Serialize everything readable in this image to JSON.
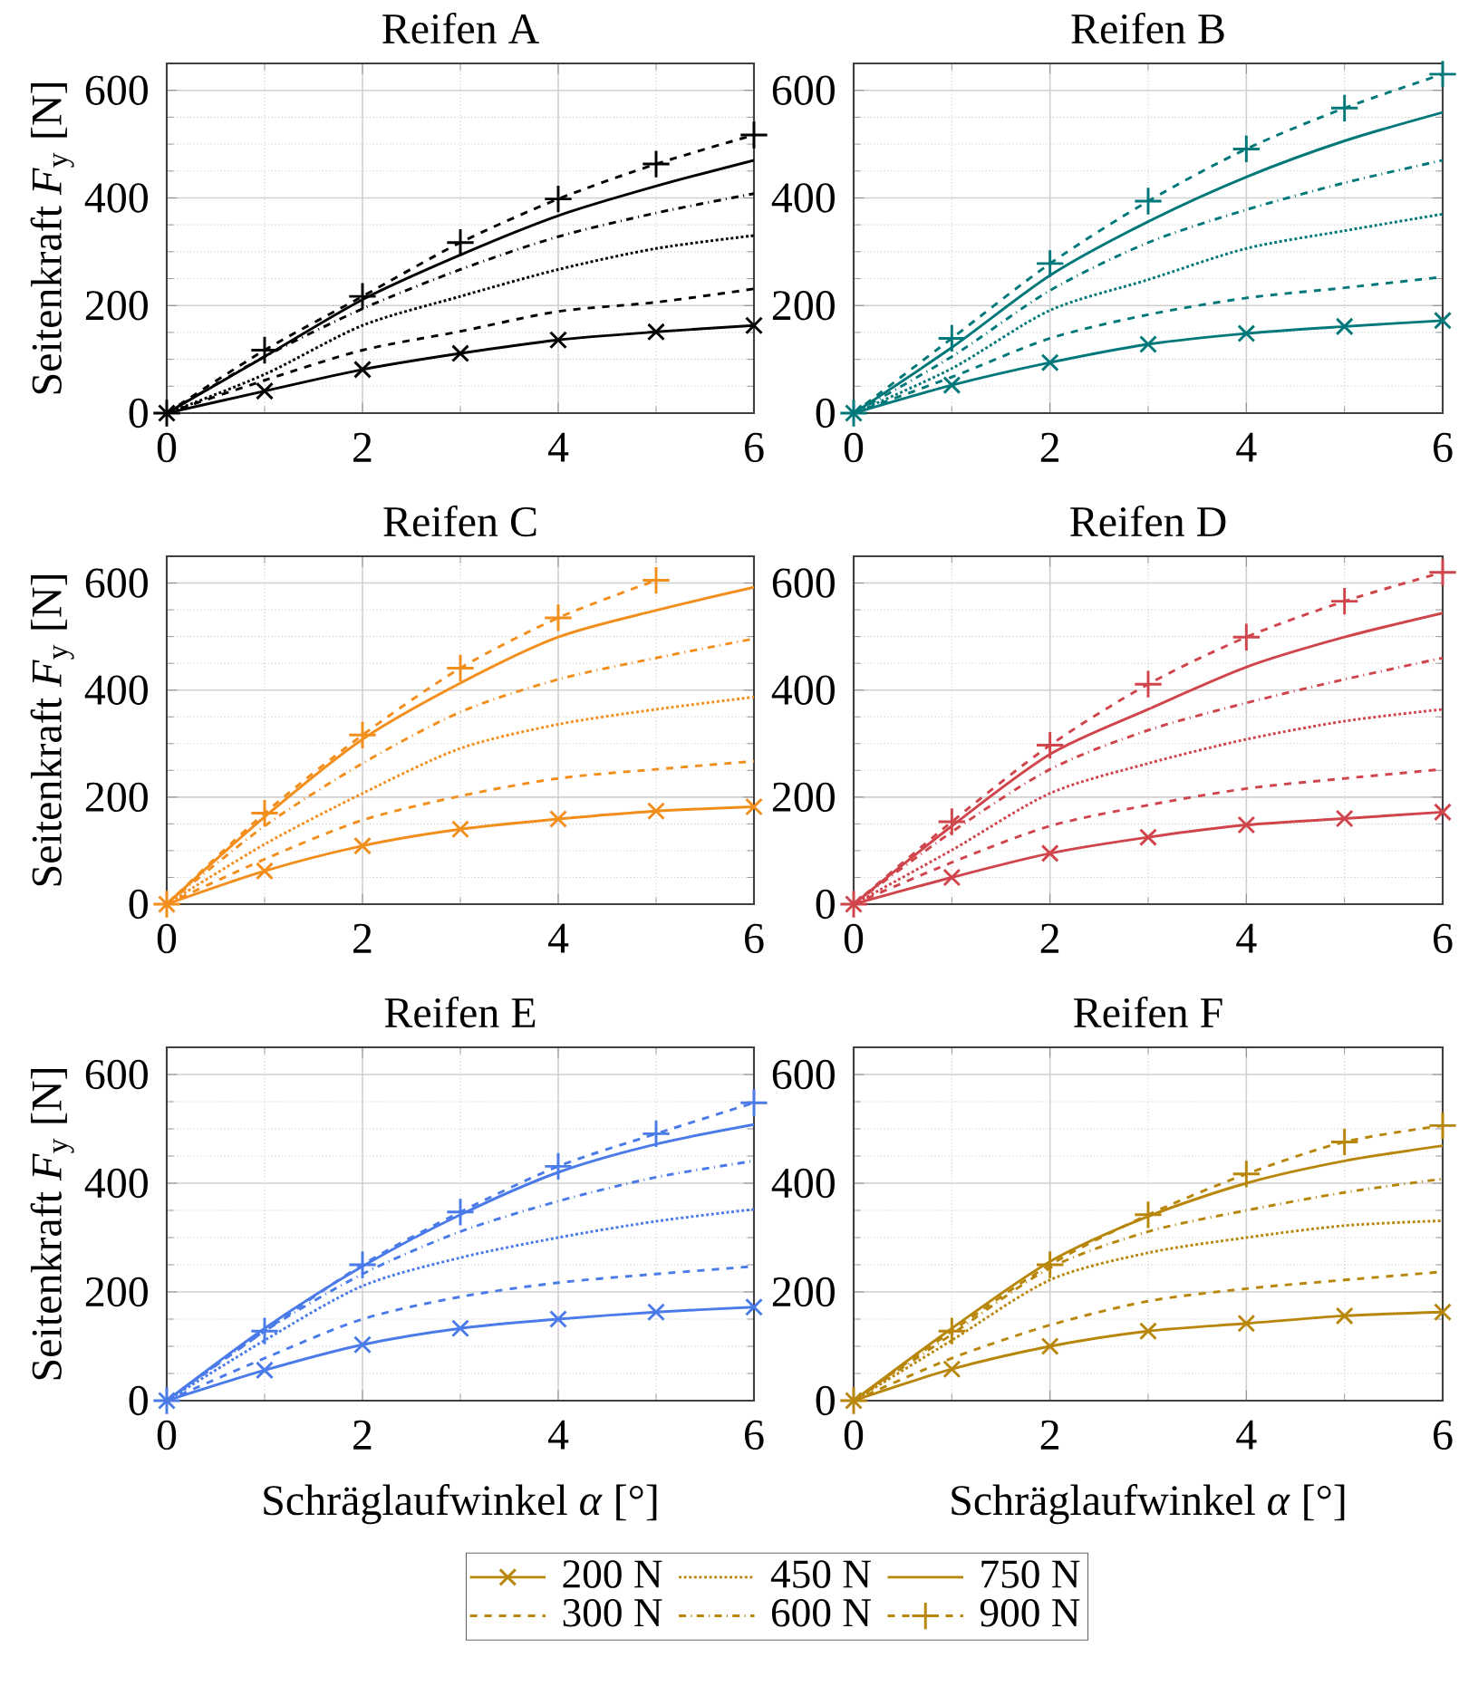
{
  "chart_data": [
    {
      "type": "line",
      "title": "Reifen A",
      "ylabel": "Seitenkraft *F*$_{y}$ [N]",
      "x": [
        0,
        1,
        2,
        3,
        4,
        5,
        6
      ],
      "xlim": [
        0,
        6
      ],
      "ylim": [
        0,
        650
      ],
      "xticks": [
        0,
        2,
        4,
        6
      ],
      "yticks": [
        0,
        200,
        400,
        600
      ],
      "grid": true,
      "series": [
        {
          "color": "#000000",
          "line_style": "solid",
          "marker": "cross",
          "values": [
            0,
            41,
            81,
            111,
            136,
            151,
            163
          ]
        },
        {
          "color": "#000000",
          "line_style": "dashed",
          "marker": "none",
          "values": [
            0,
            61,
            117,
            152,
            189,
            206,
            231
          ]
        },
        {
          "color": "#000000",
          "line_style": "dotted",
          "marker": "none",
          "values": [
            0,
            72,
            163,
            217,
            267,
            306,
            330
          ]
        },
        {
          "color": "#000000",
          "line_style": "dashdot",
          "marker": "none",
          "values": [
            0,
            105,
            194,
            267,
            328,
            372,
            408
          ]
        },
        {
          "color": "#000000",
          "line_style": "solid",
          "marker": "none",
          "values": [
            0,
            105,
            211,
            294,
            367,
            422,
            470
          ]
        },
        {
          "color": "#000000",
          "line_style": "dashed",
          "marker": "plus",
          "values": [
            0,
            117,
            217,
            317,
            398,
            463,
            517
          ]
        }
      ]
    },
    {
      "type": "line",
      "title": "Reifen B",
      "x": [
        0,
        1,
        2,
        3,
        4,
        5,
        6
      ],
      "xlim": [
        0,
        6
      ],
      "ylim": [
        0,
        650
      ],
      "xticks": [
        0,
        2,
        4,
        6
      ],
      "yticks": [
        0,
        200,
        400,
        600
      ],
      "grid": true,
      "series": [
        {
          "color": "#00787a",
          "line_style": "solid",
          "marker": "cross",
          "values": [
            0,
            52,
            94,
            128,
            148,
            161,
            172
          ]
        },
        {
          "color": "#00787a",
          "line_style": "dashed",
          "marker": "none",
          "values": [
            0,
            67,
            139,
            183,
            214,
            233,
            253
          ]
        },
        {
          "color": "#00787a",
          "line_style": "dotted",
          "marker": "none",
          "values": [
            0,
            83,
            191,
            248,
            306,
            339,
            370
          ]
        },
        {
          "color": "#00787a",
          "line_style": "dashdot",
          "marker": "none",
          "values": [
            0,
            105,
            228,
            317,
            378,
            428,
            470
          ]
        },
        {
          "color": "#00787a",
          "line_style": "solid",
          "marker": "none",
          "values": [
            0,
            122,
            256,
            356,
            439,
            506,
            559
          ]
        },
        {
          "color": "#00787a",
          "line_style": "dashed",
          "marker": "plus",
          "values": [
            0,
            139,
            278,
            394,
            491,
            567,
            630
          ]
        }
      ]
    },
    {
      "type": "line",
      "title": "Reifen C",
      "ylabel": "Seitenkraft *F*$_{y}$ [N]",
      "x": [
        0,
        1,
        2,
        3,
        4,
        5,
        6
      ],
      "xlim": [
        0,
        6
      ],
      "ylim": [
        0,
        650
      ],
      "xticks": [
        0,
        2,
        4,
        6
      ],
      "yticks": [
        0,
        200,
        400,
        600
      ],
      "grid": true,
      "series": [
        {
          "color": "#f28e1c",
          "line_style": "solid",
          "marker": "cross",
          "values": [
            0,
            62,
            109,
            140,
            159,
            174,
            182
          ]
        },
        {
          "color": "#f28e1c",
          "line_style": "dashed",
          "marker": "none",
          "values": [
            0,
            84,
            157,
            202,
            235,
            252,
            267
          ]
        },
        {
          "color": "#f28e1c",
          "line_style": "dotted",
          "marker": "none",
          "values": [
            0,
            112,
            207,
            291,
            336,
            364,
            387
          ]
        },
        {
          "color": "#f28e1c",
          "line_style": "dashdot",
          "marker": "none",
          "values": [
            0,
            146,
            263,
            359,
            420,
            460,
            496
          ]
        },
        {
          "color": "#f28e1c",
          "line_style": "solid",
          "marker": "none",
          "values": [
            0,
            163,
            308,
            413,
            499,
            549,
            592
          ]
        },
        {
          "color": "#f28e1c",
          "line_style": "dashed",
          "marker": "plus",
          "values": [
            0,
            170,
            316,
            441,
            535,
            605,
            null
          ]
        }
      ]
    },
    {
      "type": "line",
      "title": "Reifen D",
      "x": [
        0,
        1,
        2,
        3,
        4,
        5,
        6
      ],
      "xlim": [
        0,
        6
      ],
      "ylim": [
        0,
        650
      ],
      "xticks": [
        0,
        2,
        4,
        6
      ],
      "yticks": [
        0,
        200,
        400,
        600
      ],
      "grid": true,
      "series": [
        {
          "color": "#d0454c",
          "line_style": "solid",
          "marker": "cross",
          "values": [
            0,
            50,
            95,
            125,
            148,
            160,
            172
          ]
        },
        {
          "color": "#d0454c",
          "line_style": "dashed",
          "marker": "none",
          "values": [
            0,
            78,
            146,
            185,
            216,
            235,
            252
          ]
        },
        {
          "color": "#d0454c",
          "line_style": "dotted",
          "marker": "none",
          "values": [
            0,
            101,
            207,
            263,
            308,
            342,
            364
          ]
        },
        {
          "color": "#d0454c",
          "line_style": "dashdot",
          "marker": "none",
          "values": [
            0,
            135,
            252,
            325,
            376,
            420,
            460
          ]
        },
        {
          "color": "#d0454c",
          "line_style": "solid",
          "marker": "none",
          "values": [
            0,
            146,
            280,
            364,
            443,
            499,
            544
          ]
        },
        {
          "color": "#d0454c",
          "line_style": "dashed",
          "marker": "plus",
          "values": [
            0,
            154,
            297,
            411,
            499,
            566,
            620
          ]
        }
      ]
    },
    {
      "type": "line",
      "title": "Reifen E",
      "xlabel": "Schräglaufwinkel *α* [°]",
      "ylabel": "Seitenkraft *F*$_{y}$ [N]",
      "x": [
        0,
        1,
        2,
        3,
        4,
        5,
        6
      ],
      "xlim": [
        0,
        6
      ],
      "ylim": [
        0,
        650
      ],
      "xticks": [
        0,
        2,
        4,
        6
      ],
      "yticks": [
        0,
        200,
        400,
        600
      ],
      "grid": true,
      "series": [
        {
          "color": "#4a7be8",
          "line_style": "solid",
          "marker": "cross",
          "values": [
            0,
            56,
            103,
            133,
            150,
            163,
            172
          ]
        },
        {
          "color": "#4a7be8",
          "line_style": "dashed",
          "marker": "none",
          "values": [
            0,
            78,
            150,
            191,
            217,
            233,
            247
          ]
        },
        {
          "color": "#4a7be8",
          "line_style": "dotted",
          "marker": "none",
          "values": [
            0,
            111,
            211,
            263,
            300,
            330,
            352
          ]
        },
        {
          "color": "#4a7be8",
          "line_style": "dashdot",
          "marker": "none",
          "values": [
            0,
            128,
            233,
            311,
            367,
            411,
            441
          ]
        },
        {
          "color": "#4a7be8",
          "line_style": "solid",
          "marker": "none",
          "values": [
            0,
            133,
            247,
            342,
            420,
            472,
            508
          ]
        },
        {
          "color": "#4a7be8",
          "line_style": "dashed",
          "marker": "plus",
          "values": [
            0,
            128,
            250,
            347,
            431,
            491,
            548
          ]
        }
      ]
    },
    {
      "type": "line",
      "title": "Reifen F",
      "xlabel": "Schräglaufwinkel *α* [°]",
      "x": [
        0,
        1,
        2,
        3,
        4,
        5,
        6
      ],
      "xlim": [
        0,
        6
      ],
      "ylim": [
        0,
        650
      ],
      "xticks": [
        0,
        2,
        4,
        6
      ],
      "yticks": [
        0,
        200,
        400,
        600
      ],
      "grid": true,
      "legend": "bottom",
      "series": [
        {
          "name": "200 N",
          "color": "#b8860b",
          "line_style": "solid",
          "marker": "cross",
          "values": [
            0,
            58,
            100,
            128,
            142,
            156,
            163
          ]
        },
        {
          "name": "300 N",
          "color": "#b8860b",
          "line_style": "dashed",
          "marker": "none",
          "values": [
            0,
            78,
            139,
            183,
            206,
            222,
            237
          ]
        },
        {
          "name": "450 N",
          "color": "#b8860b",
          "line_style": "dotted",
          "marker": "none",
          "values": [
            0,
            111,
            222,
            272,
            300,
            322,
            331
          ]
        },
        {
          "name": "600 N",
          "color": "#b8860b",
          "line_style": "dashdot",
          "marker": "none",
          "values": [
            0,
            122,
            244,
            311,
            350,
            383,
            408
          ]
        },
        {
          "name": "750 N",
          "color": "#b8860b",
          "line_style": "solid",
          "marker": "none",
          "values": [
            0,
            133,
            256,
            339,
            400,
            441,
            469
          ]
        },
        {
          "name": "900 N",
          "color": "#b8860b",
          "line_style": "dashed",
          "marker": "plus",
          "values": [
            0,
            128,
            250,
            342,
            417,
            476,
            506
          ]
        }
      ]
    }
  ]
}
